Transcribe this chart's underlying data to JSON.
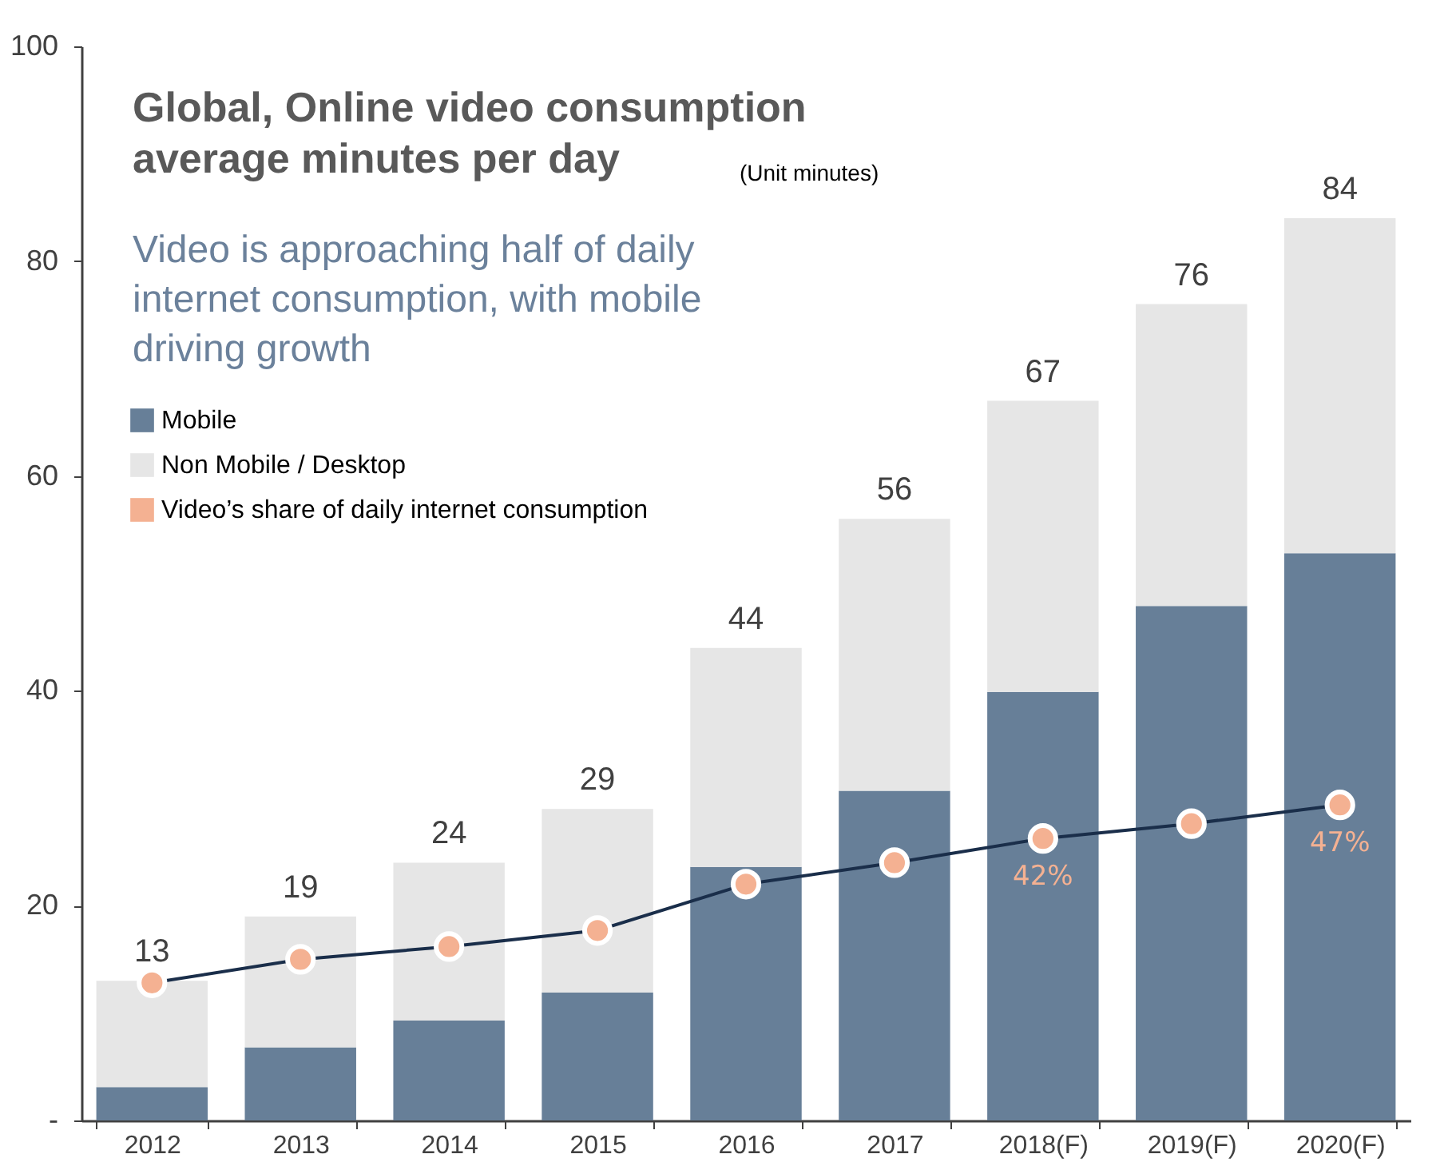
{
  "chart_data": {
    "type": "bar",
    "title": "Global, Online video consumption average minutes per day",
    "subtitle": "Video is approaching half of daily internet consumption, with mobile driving growth",
    "annotations": [
      "(Unit minutes)"
    ],
    "categories": [
      "2012",
      "2013",
      "2014",
      "2015",
      "2016",
      "2017",
      "2018(F)",
      "2019(F)",
      "2020(F)"
    ],
    "stacked": true,
    "series": [
      {
        "name": "Mobile",
        "color": "#677f98",
        "values": [
          3.1,
          6.8,
          9.3,
          11.9,
          23.6,
          30.7,
          39.9,
          47.9,
          52.8
        ]
      },
      {
        "name": "Non Mobile / Desktop",
        "color": "#e6e6e6",
        "values": [
          9.9,
          12.2,
          14.7,
          17.1,
          20.4,
          25.3,
          27.1,
          28.1,
          31.2
        ]
      },
      {
        "name": "Video’s share of daily internet consumption",
        "type": "line",
        "axis": "y2",
        "color": "#f4b192",
        "marker": "circle",
        "values": [
          20.5,
          24,
          25.9,
          28.3,
          35.2,
          38.4,
          42,
          44.2,
          47
        ],
        "value_labels": [
          null,
          null,
          null,
          null,
          null,
          null,
          "42%",
          null,
          "47%"
        ]
      }
    ],
    "totals": [
      "13",
      "19",
      "24",
      "29",
      "44",
      "56",
      "67",
      "76",
      "84"
    ],
    "ylim": [
      0,
      100
    ],
    "y2lim": [
      0,
      160
    ],
    "yticks": [
      {
        "value": 0,
        "label": "-"
      },
      20,
      40,
      60,
      80,
      100
    ],
    "grid": false,
    "legend": "top left"
  }
}
